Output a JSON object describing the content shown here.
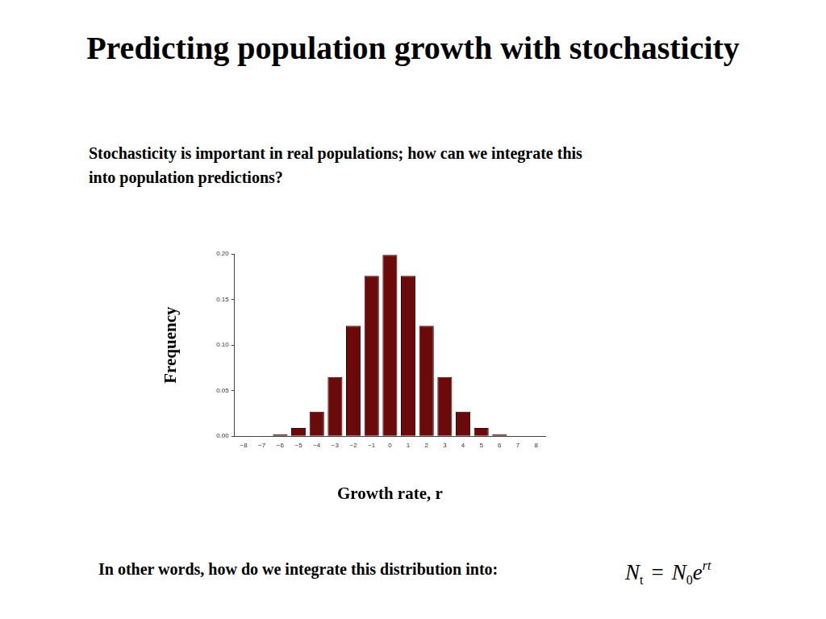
{
  "slide": {
    "title": "Predicting population growth with stochasticity",
    "intro": [
      "Stochasticity is important in real populations; how can we integrate this",
      "into population predictions?"
    ],
    "footer": "In other words, how do we integrate this distribution into:",
    "formula": {
      "lhs": "N",
      "lhs_sub": "t",
      "equals": "=",
      "rhs": "N",
      "rhs_sub": "0",
      "base": "e",
      "exponent": "rt"
    }
  },
  "chart_data": {
    "type": "bar",
    "x_label": "Growth rate, r",
    "y_label": "Frequency",
    "categories": [
      "−8",
      "−7",
      "−6",
      "−5",
      "−4",
      "−3",
      "−2",
      "−1",
      "0",
      "1",
      "2",
      "3",
      "4",
      "5",
      "6",
      "7",
      "8"
    ],
    "values": [
      0,
      0,
      0.002,
      0.009,
      0.027,
      0.065,
      0.121,
      0.176,
      0.199,
      0.176,
      0.121,
      0.065,
      0.027,
      0.009,
      0.002,
      0,
      0
    ],
    "color": "#6b0a0a",
    "ylim": [
      0,
      0.2
    ],
    "yticks": [
      {
        "value": 0,
        "label": "0.00"
      },
      {
        "value": 0.05,
        "label": "0.05"
      },
      {
        "value": 0.1,
        "label": "0.10"
      },
      {
        "value": 0.15,
        "label": "0.15"
      },
      {
        "value": 0.2,
        "label": "0.20"
      }
    ],
    "grid": false
  }
}
